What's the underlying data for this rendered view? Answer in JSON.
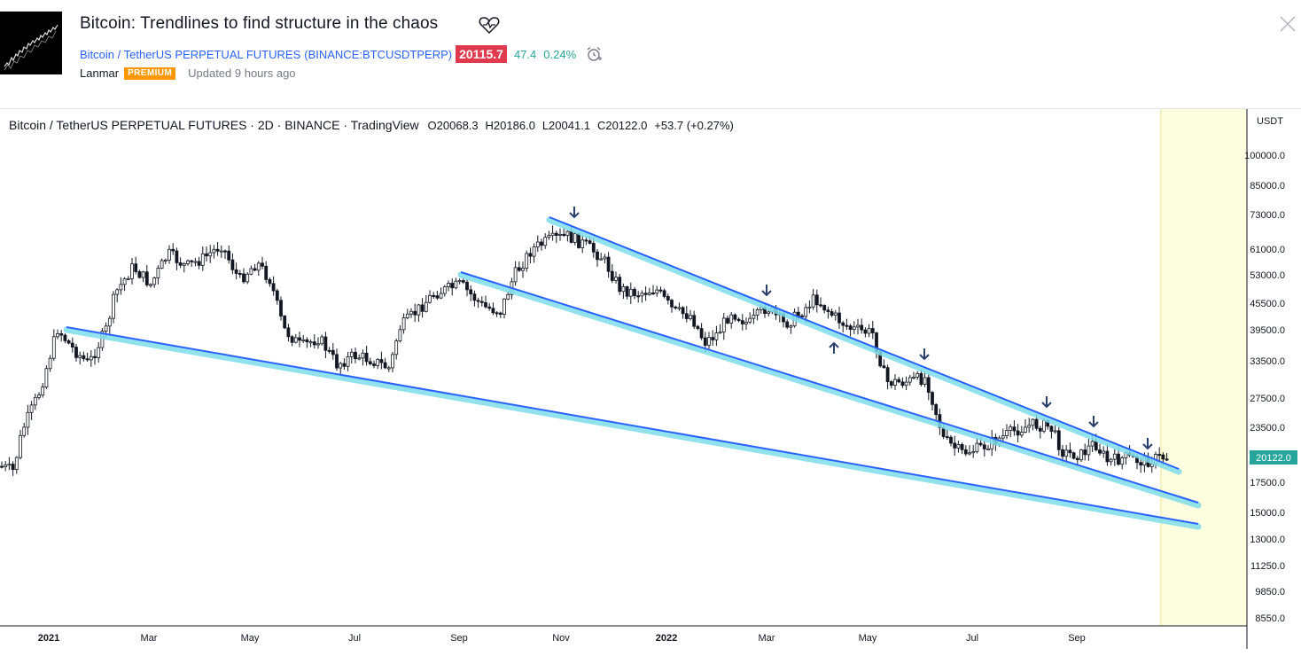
{
  "header": {
    "title": "Bitcoin: Trendlines to find structure in the chaos",
    "symbol_name": "Bitcoin / TetherUS PERPETUAL FUTURES",
    "symbol_code": "(BINANCE:BTCUSDTPERP)",
    "price": "20115.7",
    "change": "47.4",
    "change_pct": "0.24%",
    "author": "Lanmar",
    "badge": "PREMIUM",
    "updated": "Updated 9 hours ago"
  },
  "legend": {
    "text": "Bitcoin / TetherUS PERPETUAL FUTURES · 2D · BINANCE · TradingView",
    "open": "O20068.3",
    "high": "H20186.0",
    "low": "L20041.1",
    "close": "C20122.0",
    "change": "+53.7 (+0.27%)"
  },
  "axis": {
    "currency": "USDT",
    "price_labels": [
      "100000.0",
      "85000.0",
      "73000.0",
      "61000.0",
      "53000.0",
      "45500.0",
      "39500.0",
      "33500.0",
      "27500.0",
      "23500.0",
      "17500.0",
      "15000.0",
      "13000.0",
      "11250.0",
      "9850.0",
      "8550.0"
    ],
    "current_price": "20122.0",
    "time_labels": [
      "2021",
      "Mar",
      "May",
      "Jul",
      "Sep",
      "Nov",
      "2022",
      "Mar",
      "May",
      "Jul",
      "Sep"
    ]
  },
  "colors": {
    "up": "#26a69a",
    "down": "#ef5350",
    "trendline": "#2962ff",
    "trendline_glow": "#80deea",
    "arrow": "#2a3f6b",
    "future_zone": "#fdfde0",
    "price_badge": "#e03a4e",
    "premium": "#ff9800"
  }
}
